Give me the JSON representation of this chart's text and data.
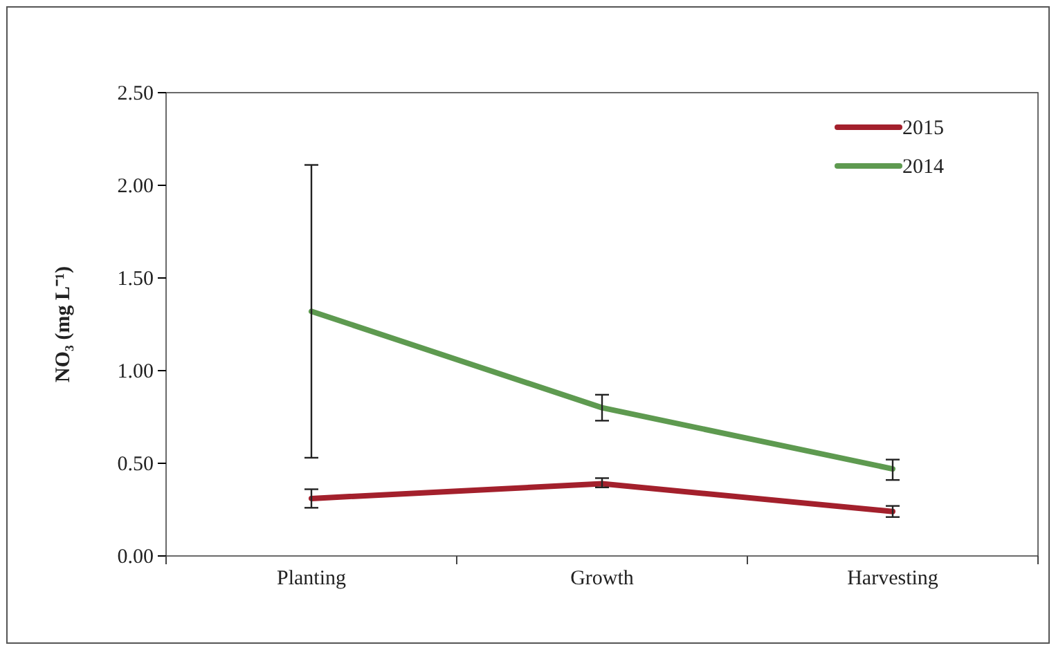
{
  "chart_data": {
    "type": "line",
    "ylabel": "NO₃ (mg L⁻¹)",
    "categories": [
      "Planting",
      "Growth",
      "Harvesting"
    ],
    "series": [
      {
        "name": "2015",
        "color": "#a3202c",
        "values": [
          0.31,
          0.39,
          0.24
        ],
        "errors": [
          [
            0.26,
            0.36
          ],
          [
            0.37,
            0.42
          ],
          [
            0.21,
            0.27
          ]
        ]
      },
      {
        "name": "2014",
        "color": "#5e9a50",
        "values": [
          1.32,
          0.8,
          0.47
        ],
        "errors": [
          [
            0.53,
            2.11
          ],
          [
            0.73,
            0.87
          ],
          [
            0.41,
            0.52
          ]
        ]
      }
    ],
    "ylim": [
      0,
      2.5
    ],
    "yticks": [
      {
        "value": 0,
        "label": "0.00"
      },
      {
        "value": 0.5,
        "label": "0.50"
      },
      {
        "value": 1,
        "label": "1.00"
      },
      {
        "value": 1.5,
        "label": "1.50"
      },
      {
        "value": 2,
        "label": "2.00"
      },
      {
        "value": 2.5,
        "label": "2.50"
      }
    ],
    "grid": false,
    "legend": "top right",
    "line_style": "solid"
  }
}
